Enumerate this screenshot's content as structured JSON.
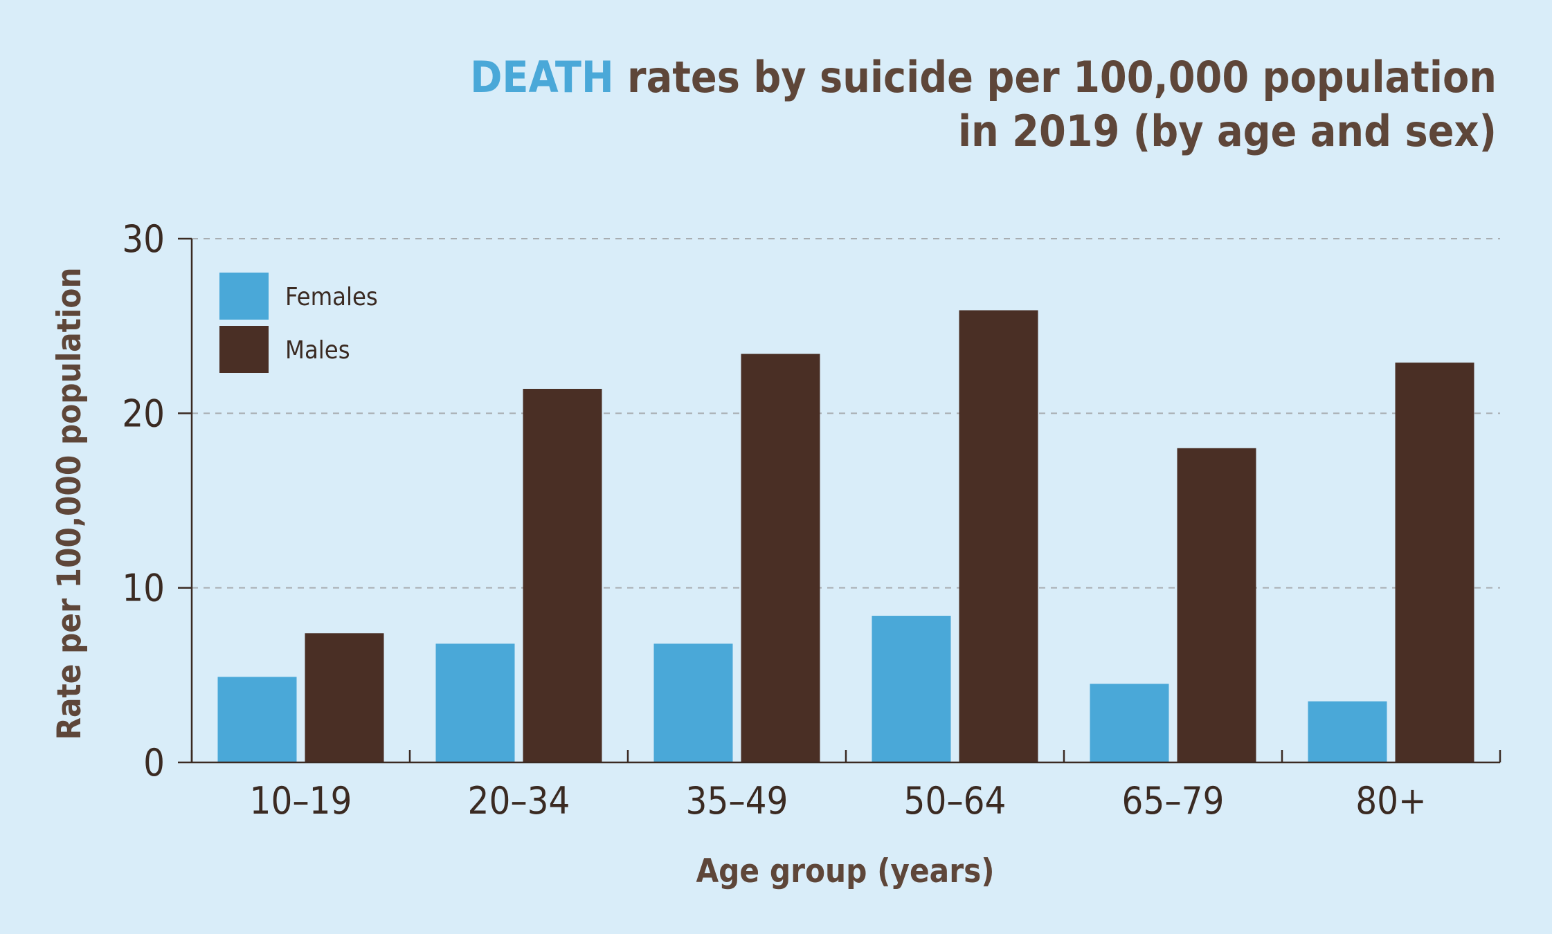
{
  "chart_data": {
    "type": "bar",
    "title": {
      "accent": "DEATH",
      "line1_rest": " rates by suicide per 100,000 population",
      "line2": "in 2019 (by age and sex)"
    },
    "xlabel": "Age group (years)",
    "ylabel": "Rate per 100,000 population",
    "categories": [
      "10–19",
      "20–34",
      "35–49",
      "50–64",
      "65–79",
      "80+"
    ],
    "series": [
      {
        "name": "Females",
        "color": "#4aa8d8",
        "values": [
          4.9,
          6.8,
          6.8,
          8.4,
          4.5,
          3.5
        ]
      },
      {
        "name": "Males",
        "color": "#4a2f25",
        "values": [
          7.4,
          21.4,
          23.4,
          25.9,
          18.0,
          22.9
        ]
      }
    ],
    "ylim": [
      0,
      30
    ],
    "yticks": [
      "0",
      "10",
      "20",
      "30"
    ],
    "grid": true,
    "legend_position": "top-left"
  }
}
